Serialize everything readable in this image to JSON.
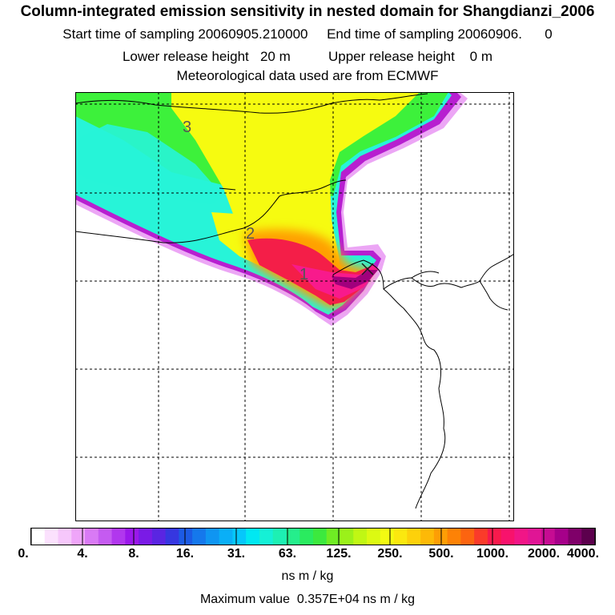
{
  "header": {
    "title": "Column-integrated emission sensitivity in nested domain for Shangdianzi_2006",
    "sampling_start": "Start time of sampling 20060905.210000     End time of sampling 20060906.      0",
    "release_heights": "Lower release height   20 m          Upper release height    0 m",
    "met_data": "Meteorological data used are from ECMWF"
  },
  "map": {
    "region_labels": [
      "1",
      "2",
      "3"
    ],
    "colors": {
      "low": "#e58cf2",
      "cyan": "#27f4d8",
      "green": "#3ef033",
      "yellow": "#f6fb10",
      "orange": "#ffa000",
      "red": "#f41e48",
      "magenta": "#f81a8c",
      "purple": "#a1007d"
    }
  },
  "legend": {
    "tick_labels": [
      "0.",
      "4.",
      "8.",
      "16.",
      "31.",
      "63.",
      "125.",
      "250.",
      "500.",
      "1000.",
      "2000.",
      "4000."
    ],
    "colors": [
      "#ffffff",
      "#fbe1fd",
      "#f6c7fb",
      "#efa5f9",
      "#d97af5",
      "#c55bf1",
      "#b137ee",
      "#9b18eb",
      "#7a1be6",
      "#5a25e2",
      "#3637e0",
      "#1c5be4",
      "#1578ec",
      "#0f95f2",
      "#0aaff7",
      "#06c7fb",
      "#00e8f2",
      "#15f0d6",
      "#1df0b3",
      "#25ee8c",
      "#2aeb5f",
      "#3ce93e",
      "#6fec24",
      "#9bf11a",
      "#c0f714",
      "#dcfa12",
      "#f3fb12",
      "#fbe80f",
      "#fdd10b",
      "#fdb907",
      "#fd9e05",
      "#fd8206",
      "#fc6410",
      "#fa3b2a",
      "#f81a4c",
      "#f8126c",
      "#f11587",
      "#e01595",
      "#c60c93",
      "#a6008a",
      "#7f0069",
      "#5c004d"
    ],
    "units": "ns m / kg",
    "max_value": "Maximum value  0.357E+04 ns m / kg"
  }
}
